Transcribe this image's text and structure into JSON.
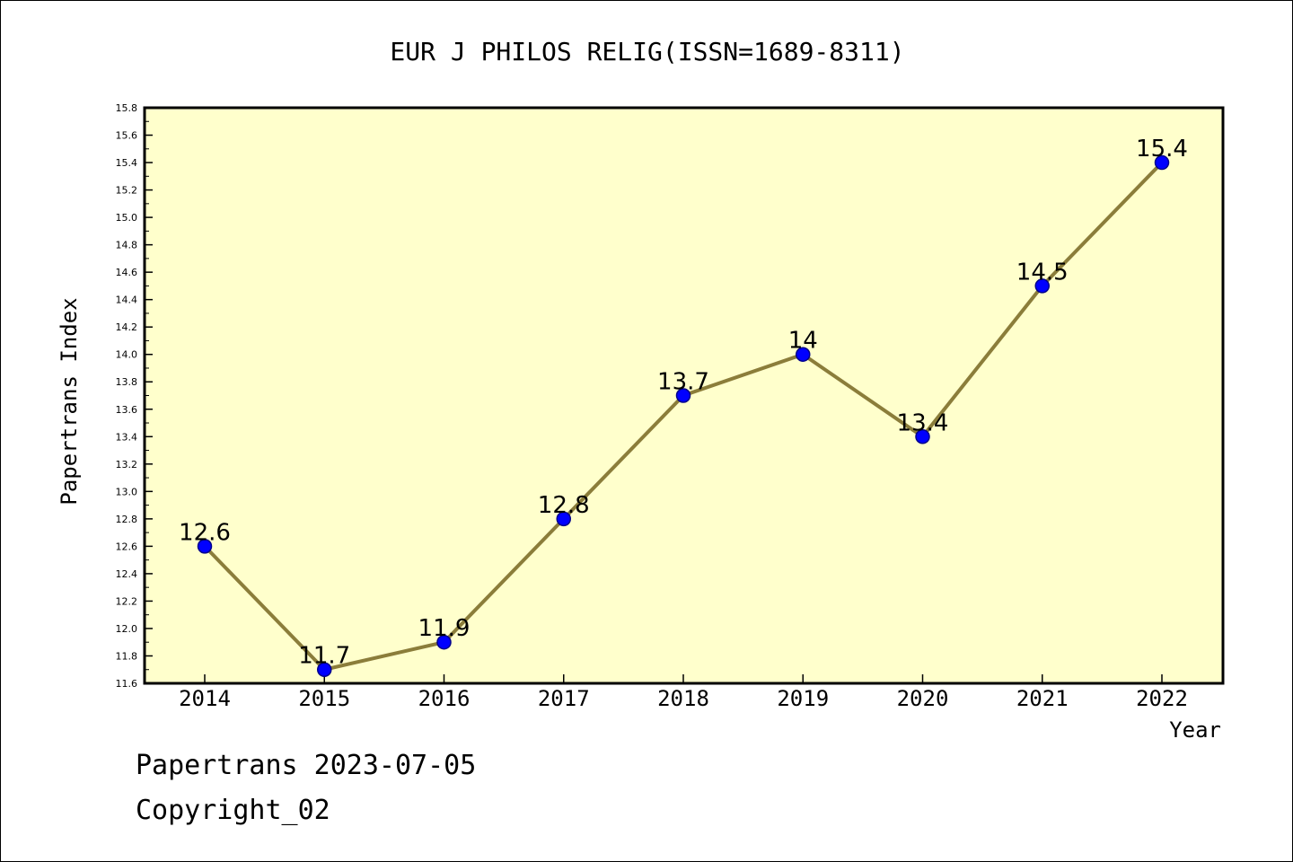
{
  "chart_data": {
    "type": "line",
    "title": "EUR J PHILOS RELIG(ISSN=1689-8311)",
    "xlabel": "Year",
    "ylabel": "Papertrans Index",
    "x": [
      "2014",
      "2015",
      "2016",
      "2017",
      "2018",
      "2019",
      "2020",
      "2021",
      "2022"
    ],
    "values": [
      12.6,
      11.7,
      11.9,
      12.8,
      13.7,
      14.0,
      13.4,
      14.5,
      15.4
    ],
    "data_labels": [
      "12.6",
      "11.7",
      "11.9",
      "12.8",
      "13.7",
      "14",
      "13.4",
      "14.5",
      "15.4"
    ],
    "ylim": [
      11.6,
      15.8
    ],
    "y_ticks": [
      "11.6",
      "11.8",
      "12.0",
      "12.2",
      "12.4",
      "12.6",
      "12.8",
      "13.0",
      "13.2",
      "13.4",
      "13.6",
      "13.8",
      "14.0",
      "14.2",
      "14.4",
      "14.6",
      "14.8",
      "15.0",
      "15.2",
      "15.4",
      "15.6",
      "15.8"
    ],
    "grid": false,
    "colors": {
      "plot_background": "#ffffcc",
      "line": "#8b7d3a",
      "marker_fill": "#0000ff",
      "marker_edge": "#00008b"
    }
  },
  "footer": {
    "date_line": "Papertrans 2023-07-05",
    "copyright": "Copyright_02"
  }
}
